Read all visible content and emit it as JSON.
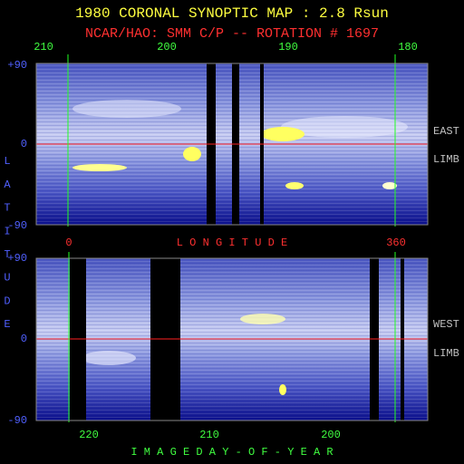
{
  "title": "1980 CORONAL SYNOPTIC MAP : 2.8 Rsun",
  "subtitle": "NCAR/HAO: SMM C/P -- ROTATION # 1697",
  "top_panel": {
    "x_axis_labels": [
      "210",
      "200",
      "190",
      "180"
    ],
    "y_axis_labels": [
      "+90",
      "0",
      "-90"
    ],
    "side_labels": [
      "EAST",
      "LIMB"
    ]
  },
  "longitude_axis": {
    "start_label": "0",
    "title": "L O N G I T U D E",
    "end_label": "360"
  },
  "y_axis_title_letters": [
    "L",
    "A",
    "T",
    "I",
    "T",
    "U",
    "D",
    "E"
  ],
  "bottom_panel": {
    "y_axis_labels": [
      "+90",
      "0",
      "-90"
    ],
    "side_labels": [
      "WEST",
      "LIMB"
    ],
    "x_axis_labels": [
      "220",
      "210",
      "200"
    ],
    "x_axis_title": "I M A G E   D A Y - O F - Y E A R"
  }
}
